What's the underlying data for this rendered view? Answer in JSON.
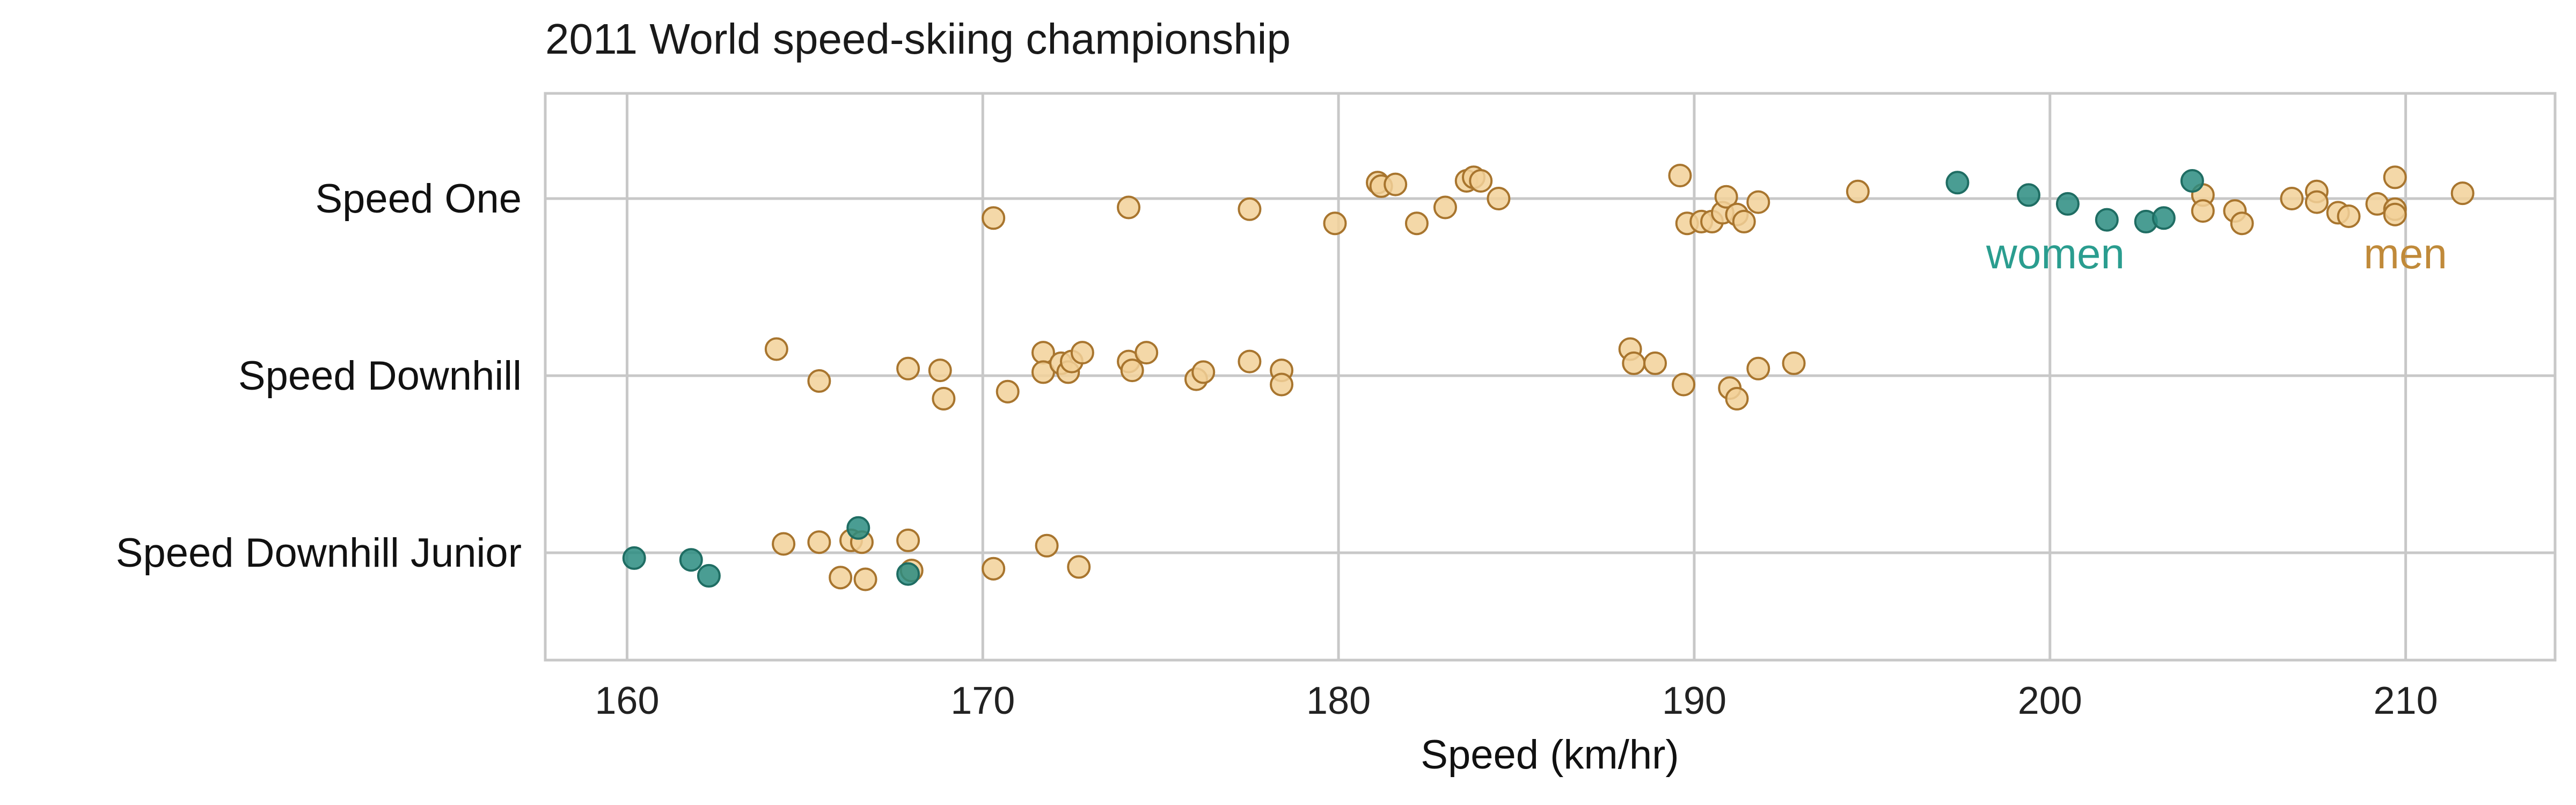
{
  "chart_data": {
    "type": "scatter",
    "title": "2011 World speed-skiing championship",
    "xlabel": "Speed (km/hr)",
    "ylabel": "",
    "xlim": [
      157.7,
      214.2
    ],
    "x_ticks": [
      160,
      170,
      180,
      190,
      200,
      210
    ],
    "categories": [
      "Speed One",
      "Speed Downhill",
      "Speed Downhill Junior"
    ],
    "grid": true,
    "legend": "none",
    "annotations": [
      {
        "text": "women",
        "color": "#2a9d8f"
      },
      {
        "text": "men",
        "color": "#c08a3a"
      }
    ],
    "series": [
      {
        "name": "men",
        "color": "#f2d199",
        "stroke": "#a8752e",
        "points": [
          {
            "category": "Speed One",
            "x": 170.3,
            "jitter": -0.11
          },
          {
            "category": "Speed One",
            "x": 174.1,
            "jitter": -0.05
          },
          {
            "category": "Speed One",
            "x": 177.5,
            "jitter": -0.06
          },
          {
            "category": "Speed One",
            "x": 179.9,
            "jitter": -0.14
          },
          {
            "category": "Speed One",
            "x": 181.1,
            "jitter": 0.09
          },
          {
            "category": "Speed One",
            "x": 181.2,
            "jitter": 0.07
          },
          {
            "category": "Speed One",
            "x": 181.6,
            "jitter": 0.08
          },
          {
            "category": "Speed One",
            "x": 182.2,
            "jitter": -0.14
          },
          {
            "category": "Speed One",
            "x": 183.0,
            "jitter": -0.05
          },
          {
            "category": "Speed One",
            "x": 183.6,
            "jitter": 0.1
          },
          {
            "category": "Speed One",
            "x": 183.8,
            "jitter": 0.12
          },
          {
            "category": "Speed One",
            "x": 184.0,
            "jitter": 0.1
          },
          {
            "category": "Speed One",
            "x": 184.5,
            "jitter": 0.0
          },
          {
            "category": "Speed One",
            "x": 189.6,
            "jitter": 0.13
          },
          {
            "category": "Speed One",
            "x": 189.8,
            "jitter": -0.14
          },
          {
            "category": "Speed One",
            "x": 190.2,
            "jitter": -0.13
          },
          {
            "category": "Speed One",
            "x": 190.5,
            "jitter": -0.13
          },
          {
            "category": "Speed One",
            "x": 190.8,
            "jitter": -0.08
          },
          {
            "category": "Speed One",
            "x": 190.9,
            "jitter": 0.01
          },
          {
            "category": "Speed One",
            "x": 191.2,
            "jitter": -0.09
          },
          {
            "category": "Speed One",
            "x": 191.4,
            "jitter": -0.13
          },
          {
            "category": "Speed One",
            "x": 191.8,
            "jitter": -0.02
          },
          {
            "category": "Speed One",
            "x": 194.6,
            "jitter": 0.04
          },
          {
            "category": "Speed One",
            "x": 204.3,
            "jitter": 0.02
          },
          {
            "category": "Speed One",
            "x": 204.3,
            "jitter": -0.07
          },
          {
            "category": "Speed One",
            "x": 205.2,
            "jitter": -0.07
          },
          {
            "category": "Speed One",
            "x": 205.4,
            "jitter": -0.14
          },
          {
            "category": "Speed One",
            "x": 206.8,
            "jitter": 0.0
          },
          {
            "category": "Speed One",
            "x": 207.5,
            "jitter": 0.04
          },
          {
            "category": "Speed One",
            "x": 207.5,
            "jitter": -0.02
          },
          {
            "category": "Speed One",
            "x": 208.1,
            "jitter": -0.08
          },
          {
            "category": "Speed One",
            "x": 208.4,
            "jitter": -0.1
          },
          {
            "category": "Speed One",
            "x": 209.2,
            "jitter": -0.03
          },
          {
            "category": "Speed One",
            "x": 209.7,
            "jitter": 0.12
          },
          {
            "category": "Speed One",
            "x": 209.7,
            "jitter": -0.06
          },
          {
            "category": "Speed One",
            "x": 209.7,
            "jitter": -0.09
          },
          {
            "category": "Speed One",
            "x": 211.6,
            "jitter": 0.03
          },
          {
            "category": "Speed Downhill",
            "x": 164.2,
            "jitter": 0.15
          },
          {
            "category": "Speed Downhill",
            "x": 165.4,
            "jitter": -0.03
          },
          {
            "category": "Speed Downhill",
            "x": 167.9,
            "jitter": 0.04
          },
          {
            "category": "Speed Downhill",
            "x": 168.8,
            "jitter": 0.03
          },
          {
            "category": "Speed Downhill",
            "x": 168.9,
            "jitter": -0.13
          },
          {
            "category": "Speed Downhill",
            "x": 170.7,
            "jitter": -0.09
          },
          {
            "category": "Speed Downhill",
            "x": 171.7,
            "jitter": 0.13
          },
          {
            "category": "Speed Downhill",
            "x": 171.7,
            "jitter": 0.02
          },
          {
            "category": "Speed Downhill",
            "x": 172.2,
            "jitter": 0.07
          },
          {
            "category": "Speed Downhill",
            "x": 172.4,
            "jitter": 0.02
          },
          {
            "category": "Speed Downhill",
            "x": 172.5,
            "jitter": 0.08
          },
          {
            "category": "Speed Downhill",
            "x": 172.8,
            "jitter": 0.13
          },
          {
            "category": "Speed Downhill",
            "x": 174.1,
            "jitter": 0.08
          },
          {
            "category": "Speed Downhill",
            "x": 174.2,
            "jitter": 0.03
          },
          {
            "category": "Speed Downhill",
            "x": 174.6,
            "jitter": 0.13
          },
          {
            "category": "Speed Downhill",
            "x": 176.0,
            "jitter": -0.02
          },
          {
            "category": "Speed Downhill",
            "x": 176.2,
            "jitter": 0.02
          },
          {
            "category": "Speed Downhill",
            "x": 177.5,
            "jitter": 0.08
          },
          {
            "category": "Speed Downhill",
            "x": 178.4,
            "jitter": 0.03
          },
          {
            "category": "Speed Downhill",
            "x": 178.4,
            "jitter": -0.05
          },
          {
            "category": "Speed Downhill",
            "x": 188.2,
            "jitter": 0.15
          },
          {
            "category": "Speed Downhill",
            "x": 188.3,
            "jitter": 0.07
          },
          {
            "category": "Speed Downhill",
            "x": 188.9,
            "jitter": 0.07
          },
          {
            "category": "Speed Downhill",
            "x": 189.7,
            "jitter": -0.05
          },
          {
            "category": "Speed Downhill",
            "x": 191.0,
            "jitter": -0.07
          },
          {
            "category": "Speed Downhill",
            "x": 191.2,
            "jitter": -0.13
          },
          {
            "category": "Speed Downhill",
            "x": 191.8,
            "jitter": 0.04
          },
          {
            "category": "Speed Downhill",
            "x": 192.8,
            "jitter": 0.07
          },
          {
            "category": "Speed Downhill Junior",
            "x": 164.4,
            "jitter": 0.05
          },
          {
            "category": "Speed Downhill Junior",
            "x": 165.4,
            "jitter": 0.06
          },
          {
            "category": "Speed Downhill Junior",
            "x": 166.0,
            "jitter": -0.14
          },
          {
            "category": "Speed Downhill Junior",
            "x": 166.3,
            "jitter": 0.07
          },
          {
            "category": "Speed Downhill Junior",
            "x": 166.6,
            "jitter": 0.06
          },
          {
            "category": "Speed Downhill Junior",
            "x": 166.7,
            "jitter": -0.15
          },
          {
            "category": "Speed Downhill Junior",
            "x": 167.9,
            "jitter": 0.07
          },
          {
            "category": "Speed Downhill Junior",
            "x": 168.0,
            "jitter": -0.1
          },
          {
            "category": "Speed Downhill Junior",
            "x": 170.3,
            "jitter": -0.09
          },
          {
            "category": "Speed Downhill Junior",
            "x": 171.8,
            "jitter": 0.04
          },
          {
            "category": "Speed Downhill Junior",
            "x": 172.7,
            "jitter": -0.08
          }
        ]
      },
      {
        "name": "women",
        "color": "#2a8c80",
        "stroke": "#1f6d63",
        "points": [
          {
            "category": "Speed One",
            "x": 197.4,
            "jitter": 0.09
          },
          {
            "category": "Speed One",
            "x": 199.4,
            "jitter": 0.02
          },
          {
            "category": "Speed One",
            "x": 200.5,
            "jitter": -0.03
          },
          {
            "category": "Speed One",
            "x": 201.6,
            "jitter": -0.12
          },
          {
            "category": "Speed One",
            "x": 202.7,
            "jitter": -0.13
          },
          {
            "category": "Speed One",
            "x": 203.2,
            "jitter": -0.11
          },
          {
            "category": "Speed One",
            "x": 204.0,
            "jitter": 0.1
          },
          {
            "category": "Speed Downhill Junior",
            "x": 160.2,
            "jitter": -0.03
          },
          {
            "category": "Speed Downhill Junior",
            "x": 161.8,
            "jitter": -0.04
          },
          {
            "category": "Speed Downhill Junior",
            "x": 162.3,
            "jitter": -0.13
          },
          {
            "category": "Speed Downhill Junior",
            "x": 166.5,
            "jitter": 0.14
          },
          {
            "category": "Speed Downhill Junior",
            "x": 167.9,
            "jitter": -0.12
          }
        ]
      }
    ]
  }
}
